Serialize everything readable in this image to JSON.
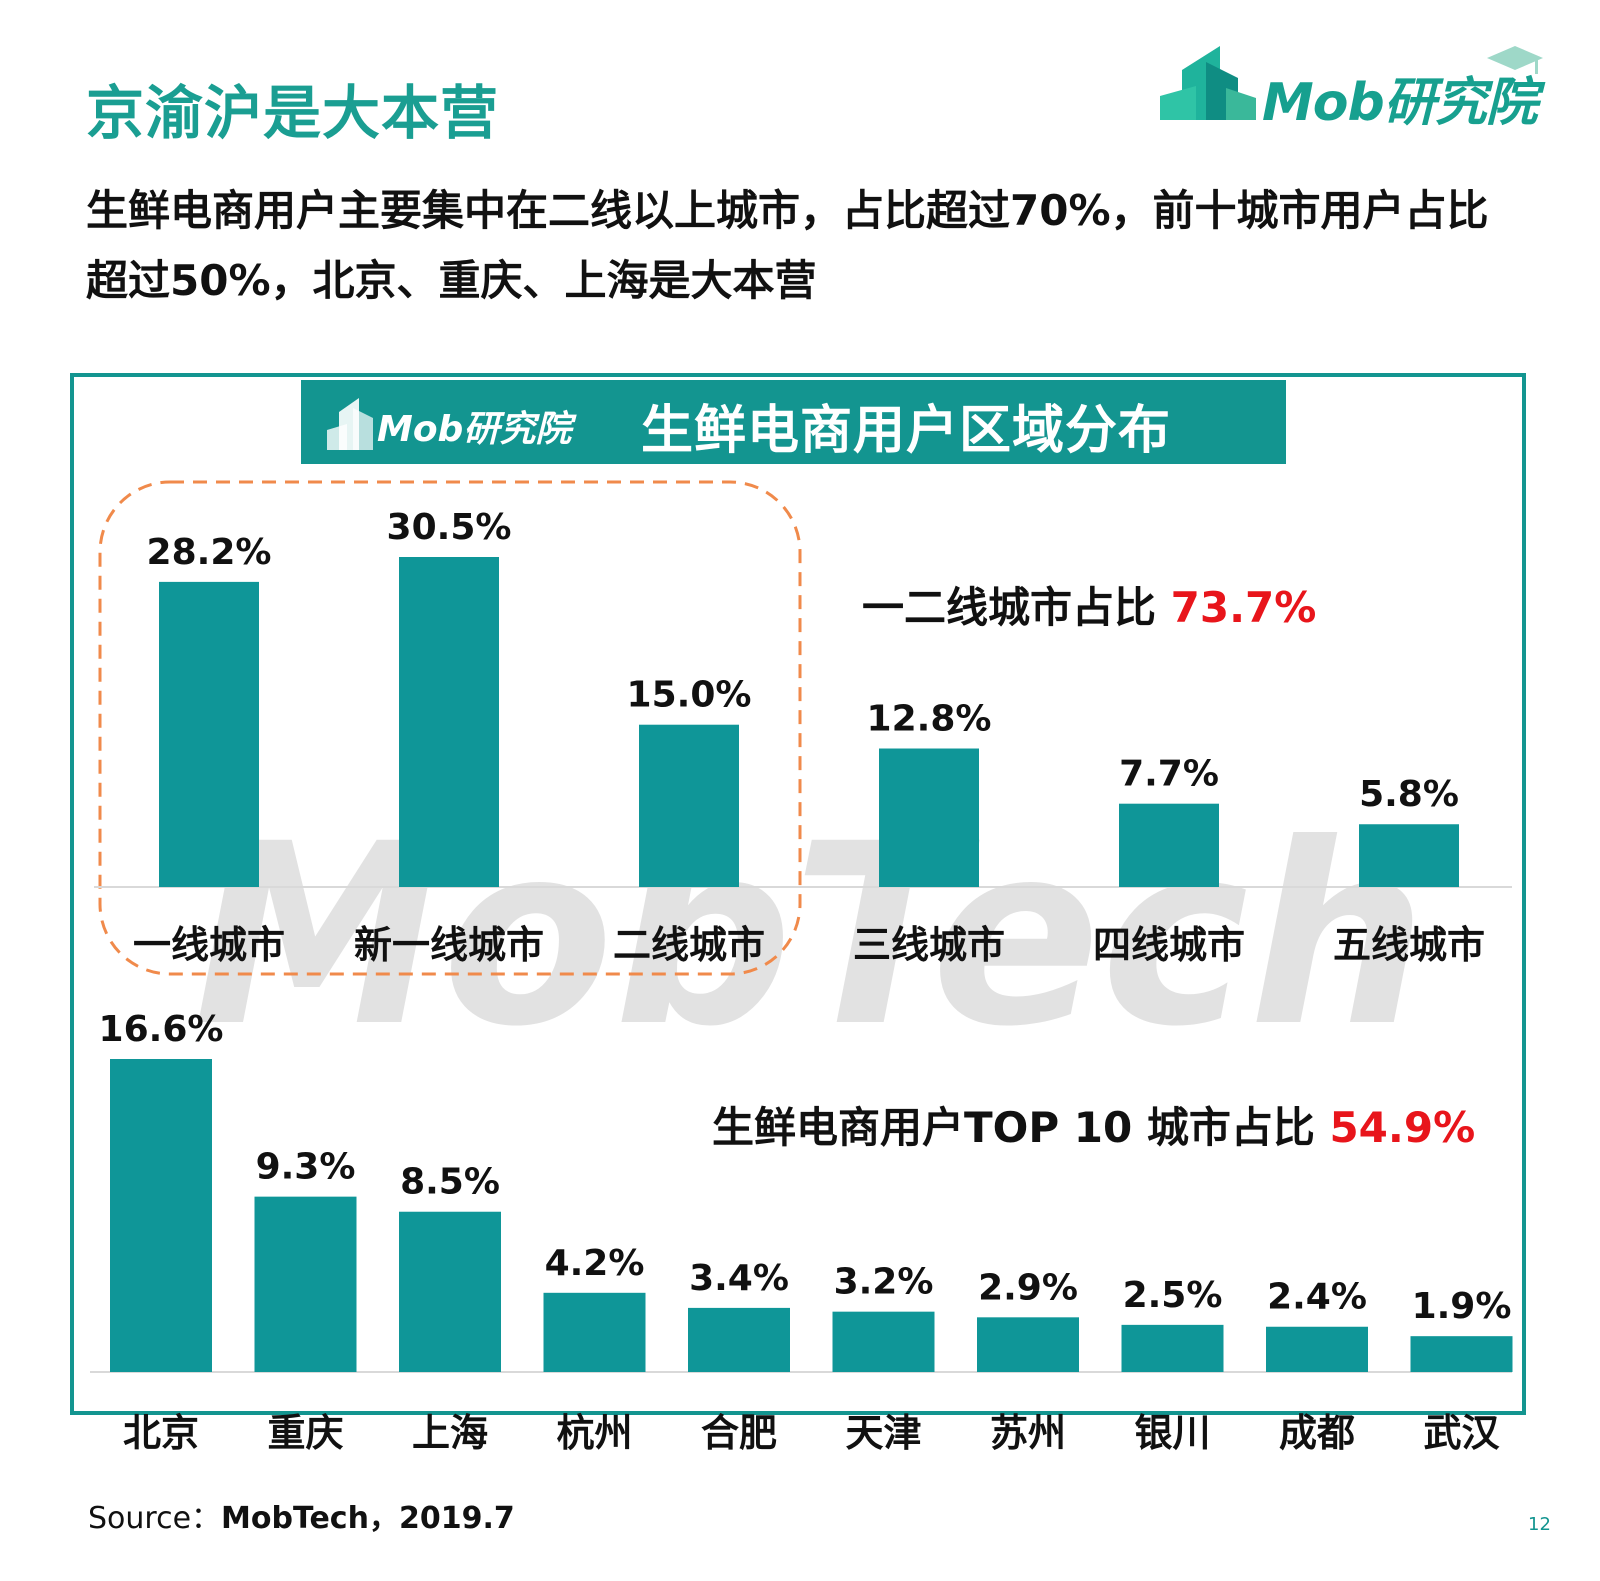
{
  "title": "京渝沪是大本营",
  "subtitle": "生鲜电商用户主要集中在二线以上城市，占比超过70%，前十城市用户占比超过50%，北京、重庆、上海是大本营",
  "logo": {
    "text": "Mob研究院",
    "icon": "mob-building-icon"
  },
  "chart_header": {
    "logo_text": "Mob研究院",
    "title": "生鲜电商用户区域分布"
  },
  "watermark": "MobTech",
  "colors": {
    "bar": "#0f9698",
    "accent": "#139590",
    "highlight": "#e8151b",
    "dash": "#f08a4b",
    "title": "#1a9e92"
  },
  "callouts": {
    "tier": {
      "label": "一二线城市占比",
      "value": "73.7%"
    },
    "top10": {
      "label": "生鲜电商用户TOP 10 城市占比",
      "value": "54.9%"
    }
  },
  "chart_data": [
    {
      "type": "bar",
      "categories": [
        "一线城市",
        "新一线城市",
        "二线城市",
        "三线城市",
        "四线城市",
        "五线城市"
      ],
      "values": [
        28.2,
        30.5,
        15.0,
        12.8,
        7.7,
        5.8
      ],
      "labels": [
        "28.2%",
        "30.5%",
        "15.0%",
        "12.8%",
        "7.7%",
        "5.8%"
      ],
      "highlight_group": [
        "一线城市",
        "新一线城市",
        "二线城市"
      ],
      "ylim": [
        0,
        30.5
      ]
    },
    {
      "type": "bar",
      "categories": [
        "北京",
        "重庆",
        "上海",
        "杭州",
        "合肥",
        "天津",
        "苏州",
        "银川",
        "成都",
        "武汉"
      ],
      "values": [
        16.6,
        9.3,
        8.5,
        4.2,
        3.4,
        3.2,
        2.9,
        2.5,
        2.4,
        1.9
      ],
      "labels": [
        "16.6%",
        "9.3%",
        "8.5%",
        "4.2%",
        "3.4%",
        "3.2%",
        "2.9%",
        "2.5%",
        "2.4%",
        "1.9%"
      ],
      "ylim": [
        0,
        16.6
      ]
    }
  ],
  "source": {
    "prefix": "Source：",
    "text": "MobTech，2019.7"
  },
  "page_number": "12"
}
